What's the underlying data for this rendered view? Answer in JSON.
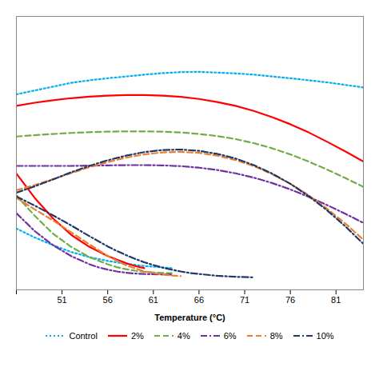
{
  "chart_data": {
    "type": "line",
    "xlabel": "Temperature (°C)",
    "xlim": [
      46,
      84
    ],
    "ylim": [
      -0.02,
      1.05
    ],
    "xticks": [
      {
        "value": 46,
        "label": ""
      },
      51,
      56,
      61,
      66,
      71,
      76,
      81
    ],
    "yticks": [],
    "grid": false,
    "tick_labels": "x",
    "legend": "bottom",
    "series": [
      {
        "name": "Control",
        "color": "#00b0f0",
        "line_style": "dotted",
        "x": [
          46,
          48,
          50,
          52,
          54,
          56,
          58,
          60,
          62,
          64,
          66,
          68,
          70,
          72,
          74,
          76,
          78,
          80,
          82,
          84,
          null,
          46,
          48,
          50,
          52,
          54,
          56,
          58,
          60,
          62,
          63
        ],
        "values": [
          0.745,
          0.76,
          0.775,
          0.79,
          0.8,
          0.808,
          0.815,
          0.822,
          0.828,
          0.832,
          0.833,
          0.83,
          0.827,
          0.822,
          0.815,
          0.808,
          0.8,
          0.792,
          0.782,
          0.772,
          null,
          0.22,
          0.185,
          0.155,
          0.128,
          0.108,
          0.093,
          0.082,
          0.073,
          0.068,
          0.065
        ]
      },
      {
        "name": "2%",
        "color": "#ff0000",
        "line_style": "solid",
        "x": [
          46,
          48,
          50,
          52,
          54,
          56,
          58,
          60,
          62,
          64,
          66,
          68,
          70,
          72,
          74,
          76,
          78,
          80,
          82,
          84,
          null,
          46,
          48,
          50,
          52,
          54,
          56,
          58,
          59,
          60
        ],
        "values": [
          0.7,
          0.712,
          0.722,
          0.73,
          0.736,
          0.74,
          0.742,
          0.742,
          0.74,
          0.735,
          0.727,
          0.715,
          0.7,
          0.68,
          0.656,
          0.628,
          0.596,
          0.56,
          0.522,
          0.482,
          null,
          0.435,
          0.34,
          0.26,
          0.195,
          0.148,
          0.112,
          0.085,
          0.073,
          0.065
        ]
      },
      {
        "name": "4%",
        "color": "#70ad47",
        "line_style": "dashed",
        "x": [
          46,
          48,
          50,
          52,
          54,
          56,
          58,
          60,
          62,
          64,
          66,
          68,
          70,
          72,
          74,
          76,
          78,
          80,
          82,
          84,
          null,
          46,
          48,
          50,
          52,
          54,
          56,
          57,
          58,
          59,
          60,
          61,
          62,
          63
        ],
        "values": [
          0.58,
          0.585,
          0.59,
          0.594,
          0.597,
          0.599,
          0.6,
          0.6,
          0.599,
          0.596,
          0.59,
          0.582,
          0.57,
          0.554,
          0.534,
          0.51,
          0.482,
          0.451,
          0.418,
          0.383,
          null,
          0.35,
          0.27,
          0.2,
          0.148,
          0.108,
          0.08,
          0.069,
          0.061,
          0.055,
          0.051,
          0.048,
          0.046,
          0.045
        ]
      },
      {
        "name": "6%",
        "color": "#7030a0",
        "line_style": "dashdot",
        "x": [
          46,
          48,
          50,
          52,
          54,
          56,
          58,
          60,
          62,
          64,
          66,
          68,
          70,
          72,
          74,
          76,
          78,
          80,
          82,
          84,
          null,
          46,
          48,
          50,
          52,
          54,
          55,
          56,
          57,
          58,
          59,
          60,
          61,
          62,
          63
        ],
        "values": [
          0.465,
          0.465,
          0.465,
          0.465,
          0.466,
          0.467,
          0.468,
          0.468,
          0.467,
          0.464,
          0.458,
          0.449,
          0.436,
          0.419,
          0.398,
          0.373,
          0.344,
          0.312,
          0.278,
          0.242,
          null,
          0.28,
          0.21,
          0.155,
          0.112,
          0.08,
          0.068,
          0.059,
          0.052,
          0.047,
          0.044,
          0.042,
          0.041,
          0.04,
          0.04
        ]
      },
      {
        "name": "8%",
        "color": "#ed7d31",
        "line_style": "dashed",
        "x": [
          46,
          48,
          50,
          52,
          54,
          56,
          58,
          60,
          62,
          64,
          66,
          68,
          70,
          72,
          74,
          76,
          78,
          80,
          82,
          84,
          null,
          46,
          48,
          50,
          52,
          54,
          56,
          58,
          60,
          62,
          63,
          64
        ],
        "values": [
          0.37,
          0.39,
          0.413,
          0.437,
          0.46,
          0.48,
          0.497,
          0.51,
          0.518,
          0.52,
          0.516,
          0.505,
          0.488,
          0.464,
          0.433,
          0.395,
          0.35,
          0.298,
          0.24,
          0.176,
          null,
          0.34,
          0.295,
          0.252,
          0.205,
          0.158,
          0.112,
          0.076,
          0.052,
          0.04,
          0.036,
          0.034
        ]
      },
      {
        "name": "10%",
        "color": "#1f3864",
        "line_style": "dashdot",
        "x": [
          46,
          48,
          50,
          52,
          54,
          56,
          58,
          60,
          62,
          64,
          66,
          68,
          70,
          72,
          74,
          76,
          78,
          80,
          82,
          84,
          null,
          46,
          48,
          50,
          52,
          54,
          56,
          57,
          58,
          59,
          60,
          61,
          62,
          63,
          64,
          65,
          66,
          68,
          70,
          72
        ],
        "values": [
          0.36,
          0.385,
          0.412,
          0.44,
          0.465,
          0.487,
          0.505,
          0.519,
          0.527,
          0.529,
          0.524,
          0.512,
          0.494,
          0.468,
          0.435,
          0.395,
          0.347,
          0.292,
          0.229,
          0.16,
          null,
          0.345,
          0.31,
          0.272,
          0.232,
          0.19,
          0.15,
          0.132,
          0.116,
          0.101,
          0.088,
          0.077,
          0.067,
          0.059,
          0.052,
          0.046,
          0.042,
          0.035,
          0.031,
          0.029
        ]
      }
    ]
  }
}
